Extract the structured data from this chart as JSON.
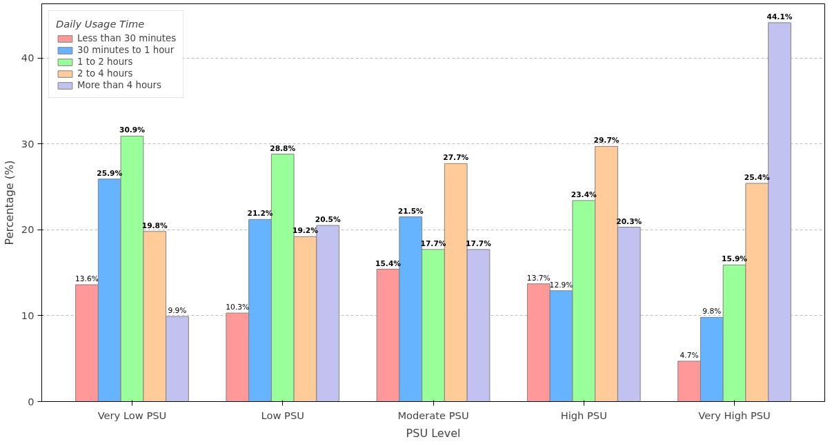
{
  "chart_data": {
    "type": "bar",
    "xlabel": "PSU Level",
    "ylabel": "Percentage (%)",
    "legend_title": "Daily Usage Time",
    "categories": [
      "Very Low PSU",
      "Low PSU",
      "Moderate PSU",
      "High PSU",
      "Very High PSU"
    ],
    "series": [
      {
        "name": "Less than 30 minutes",
        "color": "#ff9999",
        "values": [
          13.6,
          10.3,
          15.4,
          13.7,
          4.7
        ],
        "value_labels": [
          "13.6%",
          "10.3%",
          "15.4%",
          "13.7%",
          "4.7%"
        ]
      },
      {
        "name": "30 minutes to 1 hour",
        "color": "#66b3ff",
        "values": [
          25.9,
          21.2,
          21.5,
          12.9,
          9.8
        ],
        "value_labels": [
          "25.9%",
          "21.2%",
          "21.5%",
          "12.9%",
          "9.8%"
        ]
      },
      {
        "name": "1 to 2 hours",
        "color": "#99ff99",
        "values": [
          30.9,
          28.8,
          17.7,
          23.4,
          15.9
        ],
        "value_labels": [
          "30.9%",
          "28.8%",
          "17.7%",
          "23.4%",
          "15.9%"
        ]
      },
      {
        "name": "2 to 4 hours",
        "color": "#ffcc99",
        "values": [
          19.8,
          19.2,
          27.7,
          29.7,
          25.4
        ],
        "value_labels": [
          "19.8%",
          "19.2%",
          "27.7%",
          "29.7%",
          "25.4%"
        ]
      },
      {
        "name": "More than 4 hours",
        "color": "#c2c2f0",
        "values": [
          9.9,
          20.5,
          17.7,
          20.3,
          44.1
        ],
        "value_labels": [
          "9.9%",
          "20.5%",
          "17.7%",
          "20.3%",
          "44.1%"
        ]
      }
    ],
    "ylim": [
      0,
      46.3
    ],
    "yticks": [
      0,
      10,
      20,
      30,
      40
    ],
    "grid": "y",
    "legend": "top left"
  }
}
